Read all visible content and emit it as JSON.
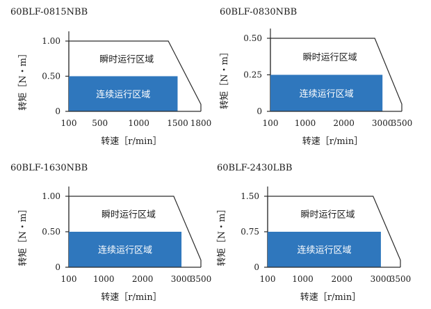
{
  "chart_data": [
    {
      "type": "area",
      "title": "60BLF-0815NBB",
      "xlabel": "转速［r/min］",
      "ylabel": "转矩［N・m］",
      "x_ticks": [
        {
          "value": 100,
          "label": "100"
        },
        {
          "value": 500,
          "label": "500"
        },
        {
          "value": 1000,
          "label": "1000"
        },
        {
          "value": 1500,
          "label": "1500"
        },
        {
          "value": 1800,
          "label": "1800"
        }
      ],
      "y_ticks": [
        {
          "value": 0,
          "label": "0"
        },
        {
          "value": 0.5,
          "label": "0.50"
        },
        {
          "value": 1.0,
          "label": "1.00"
        }
      ],
      "xlim": [
        100,
        1800
      ],
      "ylim": [
        0,
        1.0
      ],
      "grid": false,
      "series": [
        {
          "name": "瞬时运行区域",
          "x": [
            100,
            100,
            1380,
            1800,
            1800
          ],
          "y": [
            0,
            1.0,
            1.0,
            0.1,
            0
          ],
          "style": "outline"
        },
        {
          "name": "连续运行区域",
          "x": [
            100,
            1500
          ],
          "y": [
            0.5,
            0.5
          ],
          "style": "filled"
        }
      ]
    },
    {
      "type": "area",
      "title": "60BLF-0830NBB",
      "xlabel": "转速［r/min］",
      "ylabel": "转矩［N・m］",
      "x_ticks": [
        {
          "value": 100,
          "label": "100"
        },
        {
          "value": 1000,
          "label": "1000"
        },
        {
          "value": 2000,
          "label": "2000"
        },
        {
          "value": 3000,
          "label": "3000"
        },
        {
          "value": 3500,
          "label": "3500"
        }
      ],
      "y_ticks": [
        {
          "value": 0,
          "label": "0"
        },
        {
          "value": 0.25,
          "label": "0.25"
        },
        {
          "value": 0.5,
          "label": "0.50"
        }
      ],
      "xlim": [
        100,
        3500
      ],
      "ylim": [
        0,
        0.5
      ],
      "grid": false,
      "series": [
        {
          "name": "瞬时运行区域",
          "x": [
            100,
            100,
            2800,
            3500,
            3500
          ],
          "y": [
            0,
            0.5,
            0.5,
            0.05,
            0
          ],
          "style": "outline"
        },
        {
          "name": "连续运行区域",
          "x": [
            100,
            3000
          ],
          "y": [
            0.25,
            0.25
          ],
          "style": "filled"
        }
      ]
    },
    {
      "type": "area",
      "title": "60BLF-1630NBB",
      "xlabel": "转速［r/min］",
      "ylabel": "转矩［N・m］",
      "x_ticks": [
        {
          "value": 100,
          "label": "100"
        },
        {
          "value": 1000,
          "label": "1000"
        },
        {
          "value": 2000,
          "label": "2000"
        },
        {
          "value": 3000,
          "label": "3000"
        },
        {
          "value": 3500,
          "label": "3500"
        }
      ],
      "y_ticks": [
        {
          "value": 0,
          "label": "0"
        },
        {
          "value": 0.5,
          "label": "0.50"
        },
        {
          "value": 1.0,
          "label": "1.00"
        }
      ],
      "xlim": [
        100,
        3500
      ],
      "ylim": [
        0,
        1.0
      ],
      "grid": false,
      "series": [
        {
          "name": "瞬时运行区域",
          "x": [
            100,
            100,
            2800,
            3500,
            3500
          ],
          "y": [
            0,
            1.0,
            1.0,
            0.1,
            0
          ],
          "style": "outline"
        },
        {
          "name": "连续运行区域",
          "x": [
            100,
            3000
          ],
          "y": [
            0.5,
            0.5
          ],
          "style": "filled"
        }
      ]
    },
    {
      "type": "area",
      "title": "60BLF-2430LBB",
      "xlabel": "转速［r/min］",
      "ylabel": "转矩［N・m］",
      "x_ticks": [
        {
          "value": 100,
          "label": "100"
        },
        {
          "value": 1000,
          "label": "1000"
        },
        {
          "value": 2000,
          "label": "2000"
        },
        {
          "value": 3000,
          "label": "3000"
        },
        {
          "value": 3500,
          "label": "3500"
        }
      ],
      "y_ticks": [
        {
          "value": 0,
          "label": "0"
        },
        {
          "value": 0.75,
          "label": "0.75"
        },
        {
          "value": 1.5,
          "label": "1.50"
        }
      ],
      "xlim": [
        100,
        3500
      ],
      "ylim": [
        0,
        1.5
      ],
      "grid": false,
      "series": [
        {
          "name": "瞬时运行区域",
          "x": [
            100,
            100,
            2800,
            3500,
            3500
          ],
          "y": [
            0,
            1.5,
            1.5,
            0.15,
            0
          ],
          "style": "outline"
        },
        {
          "name": "连续运行区域",
          "x": [
            100,
            3000
          ],
          "y": [
            0.75,
            0.75
          ],
          "style": "filled"
        }
      ]
    }
  ],
  "colors": {
    "continuous_fill": "#2f77bd",
    "continuous_text": "#ffffff",
    "outline": "#2a2a2a",
    "text": "#1a1a1a"
  }
}
